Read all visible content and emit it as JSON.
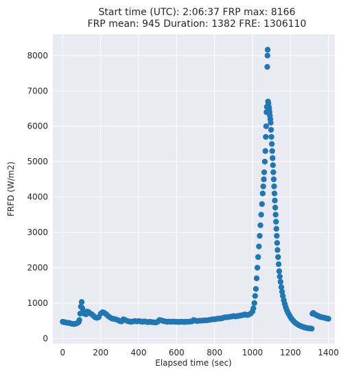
{
  "chart_data": {
    "type": "scatter",
    "title": [
      "Start time (UTC): 2:06:37 FRP max: 8166",
      "FRP mean: 945 Duration: 1382 FRE: 1306110"
    ],
    "xlabel": "Elapsed time (sec)",
    "ylabel": "FRFD (W/m2)",
    "xlim": [
      -52,
      1434
    ],
    "ylim": [
      -150,
      8600
    ],
    "xticks": [
      0,
      200,
      400,
      600,
      800,
      1000,
      1200,
      1400
    ],
    "xtick_labels": [
      "0",
      "200",
      "400",
      "600",
      "800",
      "1000",
      "1200",
      "1400"
    ],
    "yticks": [
      0,
      1000,
      2000,
      3000,
      4000,
      5000,
      6000,
      7000,
      8000
    ],
    "ytick_labels": [
      "0",
      "1000",
      "2000",
      "3000",
      "4000",
      "5000",
      "6000",
      "7000",
      "8000"
    ],
    "grid": true,
    "point_color": "#1f77b4",
    "series": [
      {
        "points": [
          [
            0,
            470
          ],
          [
            6,
            460
          ],
          [
            12,
            455
          ],
          [
            20,
            445
          ],
          [
            28,
            440
          ],
          [
            36,
            435
          ],
          [
            44,
            420
          ],
          [
            52,
            410
          ],
          [
            60,
            405
          ],
          [
            68,
            415
          ],
          [
            76,
            430
          ],
          [
            84,
            460
          ],
          [
            88,
            520
          ],
          [
            92,
            700
          ],
          [
            96,
            900
          ],
          [
            100,
            1030
          ],
          [
            104,
            850
          ],
          [
            108,
            760
          ],
          [
            114,
            700
          ],
          [
            122,
            680
          ],
          [
            130,
            760
          ],
          [
            138,
            740
          ],
          [
            146,
            700
          ],
          [
            154,
            680
          ],
          [
            162,
            640
          ],
          [
            170,
            600
          ],
          [
            180,
            580
          ],
          [
            190,
            600
          ],
          [
            200,
            700
          ],
          [
            210,
            740
          ],
          [
            220,
            720
          ],
          [
            230,
            680
          ],
          [
            240,
            630
          ],
          [
            250,
            590
          ],
          [
            260,
            560
          ],
          [
            270,
            550
          ],
          [
            280,
            540
          ],
          [
            290,
            520
          ],
          [
            300,
            490
          ],
          [
            310,
            480
          ],
          [
            320,
            540
          ],
          [
            330,
            520
          ],
          [
            340,
            490
          ],
          [
            350,
            480
          ],
          [
            360,
            470
          ],
          [
            370,
            480
          ],
          [
            380,
            490
          ],
          [
            390,
            480
          ],
          [
            400,
            490
          ],
          [
            410,
            480
          ],
          [
            420,
            470
          ],
          [
            430,
            480
          ],
          [
            440,
            470
          ],
          [
            450,
            460
          ],
          [
            460,
            470
          ],
          [
            470,
            460
          ],
          [
            480,
            455
          ],
          [
            490,
            450
          ],
          [
            500,
            470
          ],
          [
            510,
            520
          ],
          [
            520,
            510
          ],
          [
            530,
            490
          ],
          [
            540,
            480
          ],
          [
            550,
            470
          ],
          [
            560,
            475
          ],
          [
            570,
            470
          ],
          [
            580,
            475
          ],
          [
            590,
            470
          ],
          [
            600,
            470
          ],
          [
            610,
            465
          ],
          [
            620,
            470
          ],
          [
            630,
            470
          ],
          [
            640,
            465
          ],
          [
            650,
            470
          ],
          [
            660,
            470
          ],
          [
            670,
            475
          ],
          [
            680,
            480
          ],
          [
            690,
            520
          ],
          [
            700,
            500
          ],
          [
            710,
            490
          ],
          [
            720,
            500
          ],
          [
            730,
            500
          ],
          [
            740,
            505
          ],
          [
            750,
            510
          ],
          [
            760,
            510
          ],
          [
            770,
            520
          ],
          [
            780,
            530
          ],
          [
            790,
            540
          ],
          [
            800,
            540
          ],
          [
            810,
            550
          ],
          [
            820,
            560
          ],
          [
            830,
            560
          ],
          [
            840,
            570
          ],
          [
            850,
            590
          ],
          [
            860,
            600
          ],
          [
            870,
            600
          ],
          [
            880,
            610
          ],
          [
            890,
            620
          ],
          [
            900,
            630
          ],
          [
            910,
            620
          ],
          [
            920,
            630
          ],
          [
            930,
            640
          ],
          [
            940,
            650
          ],
          [
            950,
            660
          ],
          [
            960,
            680
          ],
          [
            970,
            660
          ],
          [
            980,
            670
          ],
          [
            990,
            700
          ],
          [
            1000,
            760
          ],
          [
            1005,
            850
          ],
          [
            1010,
            1000
          ],
          [
            1014,
            1200
          ],
          [
            1018,
            1400
          ],
          [
            1022,
            1700
          ],
          [
            1026,
            2000
          ],
          [
            1030,
            2300
          ],
          [
            1034,
            2600
          ],
          [
            1038,
            2900
          ],
          [
            1042,
            3200
          ],
          [
            1046,
            3500
          ],
          [
            1050,
            3800
          ],
          [
            1054,
            4100
          ],
          [
            1057,
            4300
          ],
          [
            1060,
            4500
          ],
          [
            1062,
            4700
          ],
          [
            1065,
            5000
          ],
          [
            1068,
            5300
          ],
          [
            1070,
            5700
          ],
          [
            1072,
            6000
          ],
          [
            1074,
            6400
          ],
          [
            1076,
            6550
          ],
          [
            1078,
            7680
          ],
          [
            1079,
            8000
          ],
          [
            1080,
            8166
          ],
          [
            1082,
            6700
          ],
          [
            1084,
            6650
          ],
          [
            1086,
            6550
          ],
          [
            1088,
            6500
          ],
          [
            1090,
            6400
          ],
          [
            1092,
            6300
          ],
          [
            1094,
            6200
          ],
          [
            1096,
            6100
          ],
          [
            1098,
            5900
          ],
          [
            1100,
            5700
          ],
          [
            1102,
            5500
          ],
          [
            1104,
            5300
          ],
          [
            1106,
            5100
          ],
          [
            1108,
            4900
          ],
          [
            1110,
            4700
          ],
          [
            1112,
            4500
          ],
          [
            1114,
            4300
          ],
          [
            1116,
            4100
          ],
          [
            1118,
            3900
          ],
          [
            1120,
            3700
          ],
          [
            1122,
            3500
          ],
          [
            1124,
            3300
          ],
          [
            1126,
            3100
          ],
          [
            1128,
            2900
          ],
          [
            1130,
            2700
          ],
          [
            1132,
            2500
          ],
          [
            1135,
            2300
          ],
          [
            1138,
            2100
          ],
          [
            1141,
            1900
          ],
          [
            1144,
            1750
          ],
          [
            1148,
            1600
          ],
          [
            1152,
            1450
          ],
          [
            1156,
            1320
          ],
          [
            1160,
            1200
          ],
          [
            1165,
            1080
          ],
          [
            1170,
            980
          ],
          [
            1175,
            890
          ],
          [
            1180,
            810
          ],
          [
            1186,
            740
          ],
          [
            1192,
            680
          ],
          [
            1198,
            620
          ],
          [
            1204,
            570
          ],
          [
            1210,
            530
          ],
          [
            1218,
            480
          ],
          [
            1226,
            440
          ],
          [
            1234,
            410
          ],
          [
            1242,
            380
          ],
          [
            1250,
            360
          ],
          [
            1258,
            340
          ],
          [
            1266,
            325
          ],
          [
            1274,
            310
          ],
          [
            1282,
            300
          ],
          [
            1290,
            290
          ],
          [
            1298,
            285
          ],
          [
            1306,
            280
          ],
          [
            1312,
            275
          ],
          [
            1316,
            700
          ],
          [
            1320,
            720
          ],
          [
            1326,
            690
          ],
          [
            1332,
            670
          ],
          [
            1340,
            650
          ],
          [
            1348,
            630
          ],
          [
            1356,
            610
          ],
          [
            1364,
            600
          ],
          [
            1372,
            590
          ],
          [
            1380,
            580
          ],
          [
            1388,
            570
          ],
          [
            1396,
            560
          ],
          [
            1400,
            555
          ]
        ]
      }
    ]
  }
}
